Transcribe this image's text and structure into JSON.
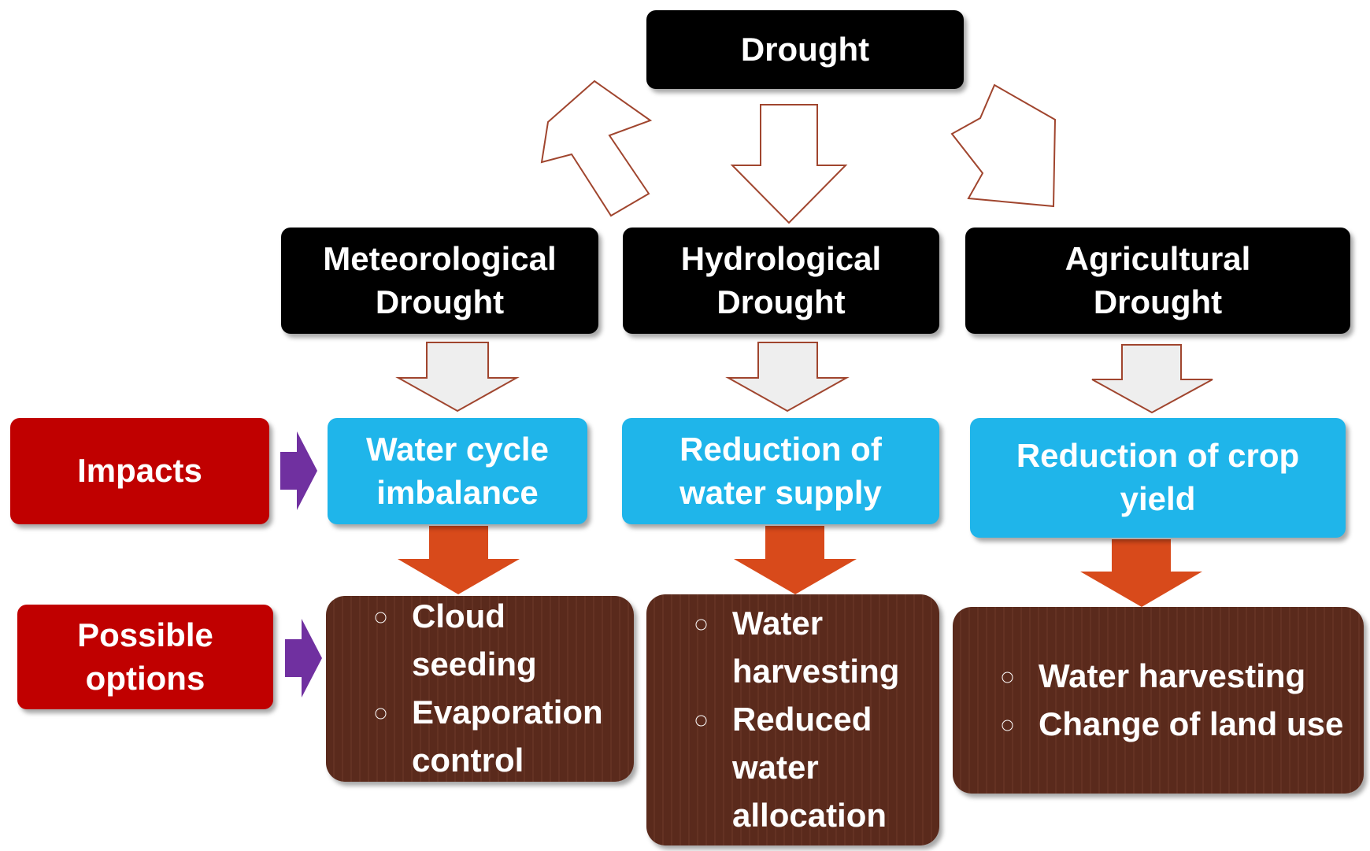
{
  "root": {
    "label": "Drought"
  },
  "types": [
    {
      "label": "Meteorological Drought",
      "impact": "Water cycle imbalance",
      "options": [
        "Cloud seeding",
        "Evaporation control"
      ]
    },
    {
      "label": "Hydrological Drought",
      "impact": "Reduction of water supply",
      "options": [
        "Water harvesting",
        "Reduced water allocation"
      ]
    },
    {
      "label": "Agricultural Drought",
      "impact": "Reduction of crop yield",
      "options": [
        "Water harvesting",
        "Change of land use"
      ]
    }
  ],
  "side_labels": {
    "impacts": "Impacts",
    "options": "Possible options"
  }
}
